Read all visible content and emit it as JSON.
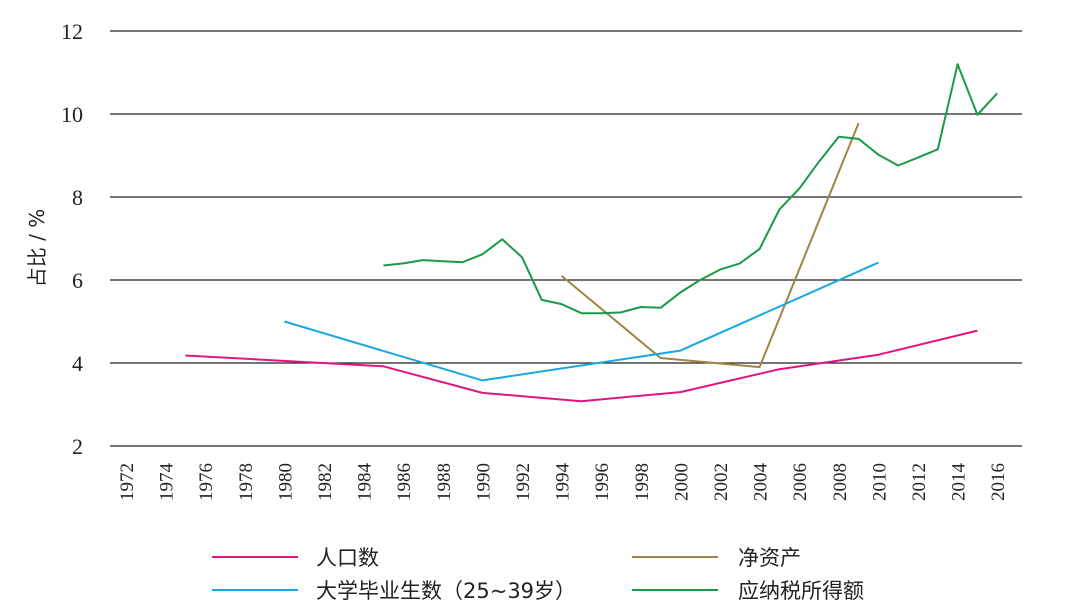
{
  "chart_data": {
    "type": "line",
    "ylabel": "占比 / %",
    "xlabel": "",
    "ylim": [
      2,
      12
    ],
    "yticks": [
      2,
      4,
      6,
      8,
      10,
      12
    ],
    "xlim": [
      1972,
      2016
    ],
    "xticks": [
      1972,
      1974,
      1976,
      1978,
      1980,
      1982,
      1984,
      1986,
      1988,
      1990,
      1992,
      1994,
      1996,
      1998,
      2000,
      2002,
      2004,
      2006,
      2008,
      2010,
      2012,
      2014,
      2016
    ],
    "grid": "horizontal",
    "legend_position": "bottom",
    "series": [
      {
        "name": "人口数",
        "color": "#e0157f",
        "x": [
          1975,
          1985,
          1990,
          1995,
          2000,
          2005,
          2010,
          2015
        ],
        "y": [
          4.18,
          3.92,
          3.28,
          3.08,
          3.3,
          3.85,
          4.2,
          4.78
        ]
      },
      {
        "name": "净资产",
        "color": "#9e8545",
        "x": [
          1994,
          1999,
          2004,
          2009
        ],
        "y": [
          6.1,
          4.12,
          3.9,
          9.78
        ]
      },
      {
        "name": "大学毕业生数（25~39岁）",
        "color": "#1aa7e0",
        "x": [
          1980,
          1990,
          2000,
          2010
        ],
        "y": [
          5.0,
          3.58,
          4.3,
          6.42
        ]
      },
      {
        "name": "应纳税所得额",
        "color": "#1a9a48",
        "x": [
          1985,
          1986,
          1987,
          1988,
          1989,
          1990,
          1991,
          1992,
          1993,
          1994,
          1995,
          1996,
          1997,
          1998,
          1999,
          2000,
          2001,
          2002,
          2003,
          2004,
          2005,
          2006,
          2007,
          2008,
          2009,
          2010,
          2011,
          2012,
          2013,
          2014,
          2015,
          2016
        ],
        "y": [
          6.35,
          6.4,
          6.48,
          6.45,
          6.43,
          6.62,
          6.98,
          6.55,
          5.52,
          5.42,
          5.2,
          5.2,
          5.22,
          5.35,
          5.33,
          5.7,
          6.0,
          6.25,
          6.4,
          6.75,
          7.7,
          8.2,
          8.85,
          9.45,
          9.4,
          9.02,
          8.76,
          8.95,
          9.15,
          11.2,
          9.98,
          10.5
        ]
      }
    ]
  }
}
